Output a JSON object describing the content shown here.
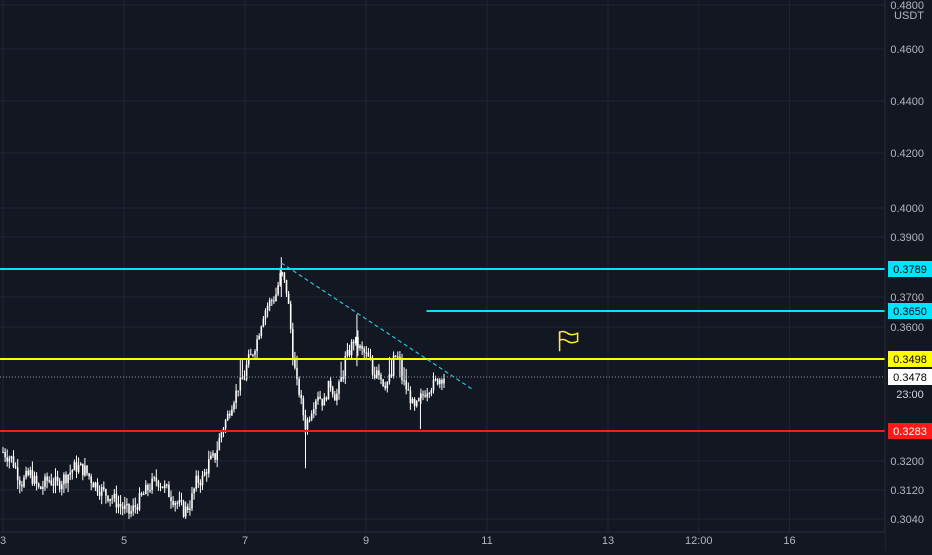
{
  "chart_data": {
    "type": "candlestick",
    "symbol_quote": "USDT",
    "colors": {
      "background": "#131722",
      "grid": "#1f2433",
      "axis_text": "#b2b5be",
      "candle": "#ffffff",
      "line_cyan": "#00e5ff",
      "line_yellow": "#ffff00",
      "line_red": "#ff1a1a",
      "trend_dashed": "#26c6da",
      "flag": "#ffeb3b"
    },
    "y_axis": {
      "range": [
        0.304,
        0.48
      ],
      "tick_labels": [
        "0.4800",
        "0.4600",
        "0.4400",
        "0.4200",
        "0.4000",
        "0.3900",
        "0.3700",
        "0.3600",
        "0.3200",
        "0.3120",
        "0.3040"
      ],
      "unit_label": "USDT"
    },
    "x_axis": {
      "range_days": [
        3,
        18
      ],
      "ticks": [
        {
          "day": 3,
          "label": "3"
        },
        {
          "day": 5,
          "label": "5"
        },
        {
          "day": 7,
          "label": "7"
        },
        {
          "day": 9,
          "label": "9"
        },
        {
          "day": 11,
          "label": "11"
        },
        {
          "day": 13,
          "label": "13"
        },
        {
          "day": 14.5,
          "label": "12:00"
        },
        {
          "day": 16,
          "label": "16"
        }
      ]
    },
    "horizontal_lines": [
      {
        "name": "level-0.3789",
        "price": 0.3789,
        "label": "0.3789",
        "color": "#00e5ff",
        "from_day": 3,
        "to_day": 17.7,
        "label_bg": "#00e5ff",
        "label_fg": "#000000"
      },
      {
        "name": "level-0.3650",
        "price": 0.365,
        "label": "0.3650",
        "color": "#00e5ff",
        "from_day": 10.0,
        "to_day": 17.7,
        "label_bg": "#00e5ff",
        "label_fg": "#000000"
      },
      {
        "name": "level-0.3498",
        "price": 0.3498,
        "label": "0.3498",
        "color": "#ffff00",
        "from_day": 3,
        "to_day": 17.7,
        "label_bg": "#ffff00",
        "label_fg": "#000000"
      },
      {
        "name": "level-0.3283",
        "price": 0.3283,
        "label": "0.3283",
        "color": "#ff1a1a",
        "from_day": 3,
        "to_day": 17.7,
        "label_bg": "#ff1a1a",
        "label_fg": "#ffffff"
      }
    ],
    "last_price": {
      "price": 0.3478,
      "label": "0.3478",
      "countdown": "23:00"
    },
    "trendline": {
      "from": {
        "day": 7.6,
        "price": 0.381
      },
      "to": {
        "day": 10.75,
        "price": 0.3435
      }
    },
    "flag_marker": {
      "day": 12.2,
      "price": 0.3545
    },
    "candles_close_path": [
      [
        3.0,
        0.3225
      ],
      [
        3.15,
        0.3205
      ],
      [
        3.3,
        0.314
      ],
      [
        3.45,
        0.3165
      ],
      [
        3.6,
        0.312
      ],
      [
        3.75,
        0.315
      ],
      [
        3.9,
        0.3135
      ],
      [
        4.05,
        0.316
      ],
      [
        4.2,
        0.3185
      ],
      [
        4.35,
        0.3175
      ],
      [
        4.5,
        0.314
      ],
      [
        4.65,
        0.3115
      ],
      [
        4.8,
        0.31
      ],
      [
        4.95,
        0.3075
      ],
      [
        5.1,
        0.3055
      ],
      [
        5.25,
        0.309
      ],
      [
        5.4,
        0.3125
      ],
      [
        5.55,
        0.315
      ],
      [
        5.7,
        0.312
      ],
      [
        5.85,
        0.309
      ],
      [
        6.0,
        0.306
      ],
      [
        6.1,
        0.3085
      ],
      [
        6.2,
        0.3145
      ],
      [
        6.3,
        0.315
      ],
      [
        6.4,
        0.3195
      ],
      [
        6.5,
        0.321
      ],
      [
        6.6,
        0.3275
      ],
      [
        6.7,
        0.333
      ],
      [
        6.8,
        0.339
      ],
      [
        6.9,
        0.345
      ],
      [
        7.0,
        0.348
      ],
      [
        7.1,
        0.3505
      ],
      [
        7.2,
        0.356
      ],
      [
        7.3,
        0.364
      ],
      [
        7.4,
        0.368
      ],
      [
        7.5,
        0.37
      ],
      [
        7.6,
        0.378
      ],
      [
        7.7,
        0.371
      ],
      [
        7.8,
        0.35
      ],
      [
        7.9,
        0.342
      ],
      [
        8.0,
        0.33
      ],
      [
        8.1,
        0.336
      ],
      [
        8.2,
        0.342
      ],
      [
        8.3,
        0.338
      ],
      [
        8.4,
        0.346
      ],
      [
        8.5,
        0.34
      ],
      [
        8.6,
        0.348
      ],
      [
        8.7,
        0.351
      ],
      [
        8.8,
        0.356
      ],
      [
        8.9,
        0.353
      ],
      [
        9.0,
        0.351
      ],
      [
        9.1,
        0.348
      ],
      [
        9.2,
        0.35
      ],
      [
        9.3,
        0.345
      ],
      [
        9.4,
        0.347
      ],
      [
        9.5,
        0.351
      ],
      [
        9.6,
        0.347
      ],
      [
        9.7,
        0.342
      ],
      [
        9.8,
        0.336
      ],
      [
        9.9,
        0.34
      ],
      [
        10.0,
        0.343
      ],
      [
        10.1,
        0.345
      ],
      [
        10.2,
        0.347
      ],
      [
        10.3,
        0.3478
      ]
    ]
  }
}
